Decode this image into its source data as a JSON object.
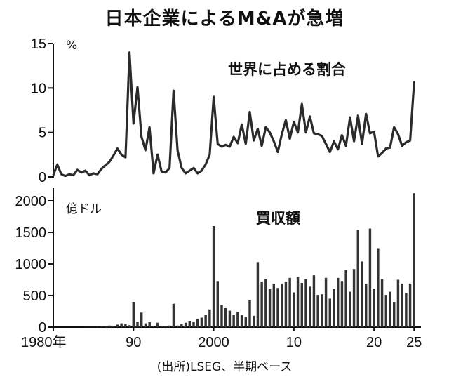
{
  "title": "日本企業によるM&Aが急増",
  "source": "(出所)LSEG、半期ベース",
  "chart_data": [
    {
      "type": "line",
      "title": "世界に占める割合",
      "ylabel": "%",
      "ylim": [
        0,
        15
      ],
      "yticks": [
        "15",
        "10",
        "5",
        "0"
      ],
      "xlim": [
        1980,
        2025.5
      ],
      "grid": false,
      "x": [
        1980,
        1980.5,
        1981,
        1981.5,
        1982,
        1982.5,
        1983,
        1983.5,
        1984,
        1984.5,
        1985,
        1985.5,
        1986,
        1986.5,
        1987,
        1987.5,
        1988,
        1988.5,
        1989,
        1989.5,
        1990,
        1990.5,
        1991,
        1991.5,
        1992,
        1992.5,
        1993,
        1993.5,
        1994,
        1994.5,
        1995,
        1995.5,
        1996,
        1996.5,
        1997,
        1997.5,
        1998,
        1998.5,
        1999,
        1999.5,
        2000,
        2000.5,
        2001,
        2001.5,
        2002,
        2002.5,
        2003,
        2003.5,
        2004,
        2004.5,
        2005,
        2005.5,
        2006,
        2006.5,
        2007,
        2007.5,
        2008,
        2008.5,
        2009,
        2009.5,
        2010,
        2010.5,
        2011,
        2011.5,
        2012,
        2012.5,
        2013,
        2013.5,
        2014,
        2014.5,
        2015,
        2015.5,
        2016,
        2016.5,
        2017,
        2017.5,
        2018,
        2018.5,
        2019,
        2019.5,
        2020,
        2020.5,
        2021,
        2021.5,
        2022,
        2022.5,
        2023,
        2023.5,
        2024,
        2024.5,
        2025
      ],
      "y": [
        0.2,
        1.4,
        0.3,
        0.1,
        0.3,
        0.2,
        0.8,
        0.5,
        0.7,
        0.2,
        0.4,
        0.3,
        0.9,
        1.3,
        1.7,
        2.4,
        3.2,
        2.5,
        2.2,
        14,
        6,
        10.1,
        4.5,
        3,
        5.6,
        0.4,
        2.5,
        0.6,
        0.5,
        1,
        9.7,
        3,
        1,
        0.4,
        0.7,
        1,
        0.4,
        0.7,
        1.4,
        2.5,
        9,
        3.7,
        3.4,
        3.6,
        3.4,
        4.5,
        3.8,
        5.9,
        3.7,
        7.3,
        4.1,
        5.4,
        3.5,
        5.6,
        5,
        4,
        2.8,
        4.8,
        6.4,
        4.3,
        6.2,
        5,
        8.2,
        5,
        6.8,
        4.9,
        4.8,
        4.6,
        3.7,
        2.8,
        4,
        3.1,
        4.7,
        3.5,
        6.7,
        4,
        6.9,
        3.7,
        7.1,
        4.9,
        5.1,
        2.3,
        2.7,
        3.2,
        3.3,
        5.6,
        4.8,
        3.5,
        3.9,
        4.1,
        10.7
      ]
    },
    {
      "type": "bar",
      "title": "買収額",
      "ylabel": "億ドル",
      "ylim": [
        0,
        2200
      ],
      "yticks": [
        "2000",
        "1500",
        "1000",
        "500",
        "0"
      ],
      "xticks": [
        "1980年",
        "90",
        "2000",
        "10",
        "20",
        "25"
      ],
      "grid": false,
      "x": [
        1980,
        1980.5,
        1981,
        1981.5,
        1982,
        1982.5,
        1983,
        1983.5,
        1984,
        1984.5,
        1985,
        1985.5,
        1986,
        1986.5,
        1987,
        1987.5,
        1988,
        1988.5,
        1989,
        1989.5,
        1990,
        1990.5,
        1991,
        1991.5,
        1992,
        1992.5,
        1993,
        1993.5,
        1994,
        1994.5,
        1995,
        1995.5,
        1996,
        1996.5,
        1997,
        1997.5,
        1998,
        1998.5,
        1999,
        1999.5,
        2000,
        2000.5,
        2001,
        2001.5,
        2002,
        2002.5,
        2003,
        2003.5,
        2004,
        2004.5,
        2005,
        2005.5,
        2006,
        2006.5,
        2007,
        2007.5,
        2008,
        2008.5,
        2009,
        2009.5,
        2010,
        2010.5,
        2011,
        2011.5,
        2012,
        2012.5,
        2013,
        2013.5,
        2014,
        2014.5,
        2015,
        2015.5,
        2016,
        2016.5,
        2017,
        2017.5,
        2018,
        2018.5,
        2019,
        2019.5,
        2020,
        2020.5,
        2021,
        2021.5,
        2022,
        2022.5,
        2023,
        2023.5,
        2024,
        2024.5,
        2025
      ],
      "values": [
        0,
        0,
        0,
        0,
        0,
        0,
        0,
        0,
        2,
        3,
        5,
        5,
        10,
        15,
        25,
        20,
        40,
        60,
        50,
        30,
        400,
        80,
        230,
        60,
        80,
        20,
        70,
        20,
        20,
        25,
        370,
        25,
        50,
        70,
        100,
        90,
        130,
        150,
        200,
        280,
        1600,
        730,
        350,
        300,
        260,
        200,
        240,
        190,
        160,
        430,
        180,
        1030,
        720,
        760,
        600,
        680,
        620,
        690,
        720,
        780,
        550,
        790,
        700,
        760,
        640,
        820,
        510,
        520,
        780,
        450,
        600,
        780,
        730,
        900,
        560,
        920,
        1540,
        1040,
        680,
        1560,
        600,
        1250,
        760,
        510,
        560,
        400,
        750,
        690,
        540,
        690,
        2120
      ]
    }
  ]
}
